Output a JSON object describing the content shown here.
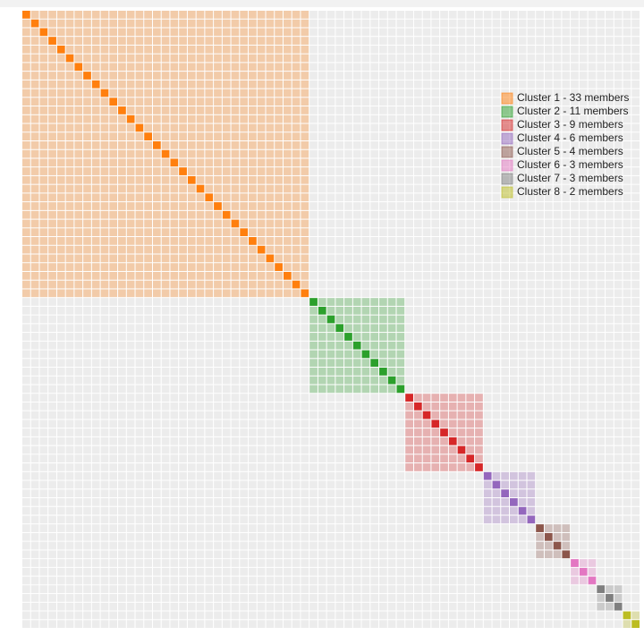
{
  "chart_data": {
    "type": "matrix",
    "series": [
      {
        "name": "Cluster 1 - 33 members",
        "color": "#ff7f0e",
        "members": 33
      },
      {
        "name": "Cluster 2 - 11 members",
        "color": "#2ca02c",
        "members": 11
      },
      {
        "name": "Cluster 3 - 9 members",
        "color": "#d62728",
        "members": 9
      },
      {
        "name": "Cluster 4 - 6 members",
        "color": "#9467bd",
        "members": 6
      },
      {
        "name": "Cluster 5 - 4 members",
        "color": "#8c564b",
        "members": 4
      },
      {
        "name": "Cluster 6 - 3 members",
        "color": "#e377c2",
        "members": 3
      },
      {
        "name": "Cluster 7 - 3 members",
        "color": "#7f7f7f",
        "members": 3
      },
      {
        "name": "Cluster 8 - 2 members",
        "color": "#bcbd22",
        "members": 2
      }
    ]
  }
}
